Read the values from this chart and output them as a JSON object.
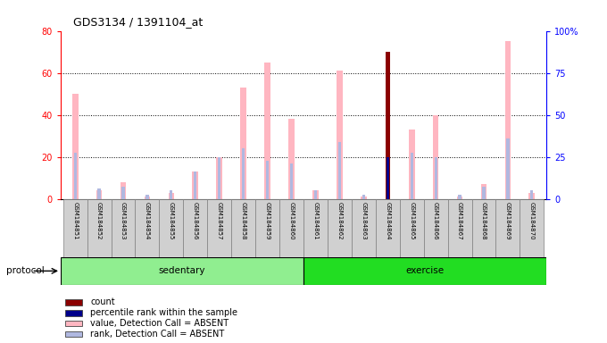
{
  "title": "GDS3134 / 1391104_at",
  "samples": [
    "GSM184851",
    "GSM184852",
    "GSM184853",
    "GSM184854",
    "GSM184855",
    "GSM184856",
    "GSM184857",
    "GSM184858",
    "GSM184859",
    "GSM184860",
    "GSM184861",
    "GSM184862",
    "GSM184863",
    "GSM184864",
    "GSM184865",
    "GSM184866",
    "GSM184867",
    "GSM184868",
    "GSM184869",
    "GSM184870"
  ],
  "group": [
    "sedentary",
    "sedentary",
    "sedentary",
    "sedentary",
    "sedentary",
    "sedentary",
    "sedentary",
    "sedentary",
    "sedentary",
    "sedentary",
    "exercise",
    "exercise",
    "exercise",
    "exercise",
    "exercise",
    "exercise",
    "exercise",
    "exercise",
    "exercise",
    "exercise"
  ],
  "value_absent": [
    50,
    4,
    8,
    1,
    3,
    13,
    20,
    53,
    65,
    38,
    4,
    61,
    1,
    0,
    33,
    40,
    1,
    7,
    75,
    3
  ],
  "rank_absent": [
    22,
    5,
    6,
    2,
    4,
    13,
    20,
    24,
    18,
    17,
    4,
    27,
    2,
    2,
    22,
    20,
    2,
    6,
    29,
    4
  ],
  "count": [
    0,
    0,
    0,
    0,
    0,
    0,
    0,
    0,
    0,
    0,
    0,
    0,
    0,
    70,
    0,
    0,
    0,
    0,
    0,
    0
  ],
  "pct_rank": [
    0,
    0,
    0,
    0,
    0,
    0,
    0,
    0,
    0,
    0,
    0,
    0,
    0,
    25,
    0,
    0,
    0,
    0,
    0,
    0
  ],
  "color_value_absent": "#FFB6C1",
  "color_rank_absent": "#B0B8E0",
  "color_count": "#8B0000",
  "color_pct_rank": "#00008B",
  "ylim_left": [
    0,
    80
  ],
  "ylim_right": [
    0,
    100
  ],
  "yticks_left": [
    0,
    20,
    40,
    60,
    80
  ],
  "yticks_right": [
    0,
    25,
    50,
    75,
    100
  ],
  "ytick_labels_right": [
    "0",
    "25",
    "50",
    "75",
    "100%"
  ],
  "sed_color": "#90EE90",
  "exr_color": "#22DD22",
  "protocol_label": "protocol",
  "background_color": "#FFFFFF"
}
